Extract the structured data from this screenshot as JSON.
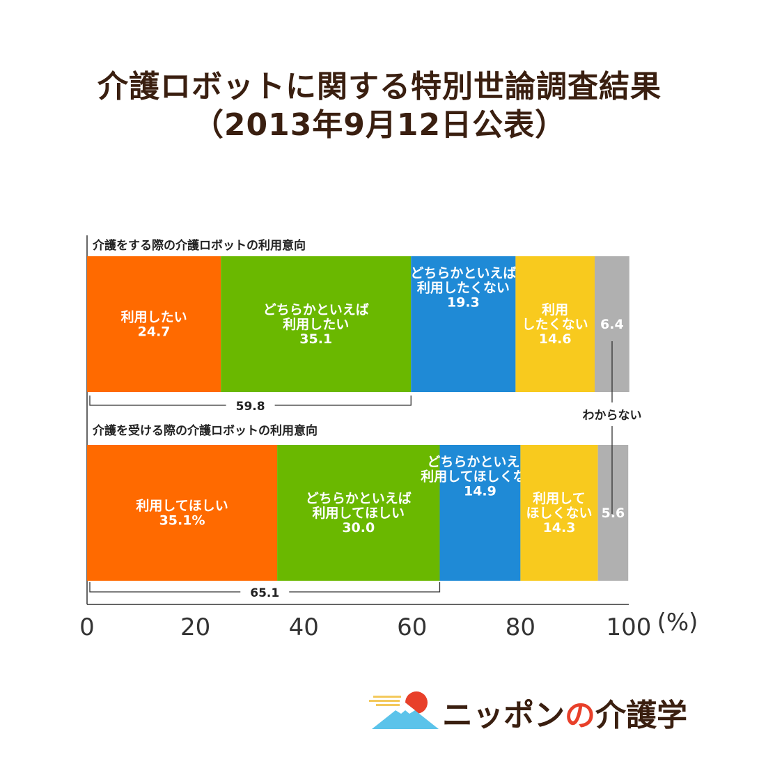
{
  "title": {
    "line1": "介護ロボットに関する特別世論調査結果",
    "line2": "（2013年9月12日公表）"
  },
  "chart_data": {
    "type": "bar",
    "orientation": "horizontal-stacked",
    "xlim": [
      0,
      100
    ],
    "x_ticks": [
      "0",
      "20",
      "40",
      "60",
      "80",
      "100"
    ],
    "unit": "(%)",
    "colors": [
      "#ff6a00",
      "#6ab800",
      "#1f8ad6",
      "#f8ca1e",
      "#b0b0b0"
    ],
    "groups": [
      {
        "title": "介護をする際の介護ロボットの利用意向",
        "segments": [
          {
            "label": "利用したい",
            "value_text": "24.7",
            "value": 24.7
          },
          {
            "label": "どちらかといえば\n利用したい",
            "value_text": "35.1",
            "value": 35.1
          },
          {
            "label": "どちらかといえば\n利用したくない",
            "value_text": "19.3",
            "value": 19.3
          },
          {
            "label": "利用\nしたくない",
            "value_text": "14.6",
            "value": 14.6
          },
          {
            "label": "",
            "value_text": "6.4",
            "value": 6.4
          }
        ],
        "bracket": {
          "from": 0,
          "to": 59.8,
          "value_text": "59.8"
        }
      },
      {
        "title": "介護を受ける際の介護ロボットの利用意向",
        "segments": [
          {
            "label": "利用してほしい",
            "value_text": "35.1%",
            "value": 35.1
          },
          {
            "label": "どちらかといえば\n利用してほしい",
            "value_text": "30.0",
            "value": 30.0
          },
          {
            "label": "どちらかといえば\n利用してほしくない",
            "value_text": "14.9",
            "value": 14.9
          },
          {
            "label": "利用して\nほしくない",
            "value_text": "14.3",
            "value": 14.3
          },
          {
            "label": "",
            "value_text": "5.6",
            "value": 5.6
          }
        ],
        "bracket": {
          "from": 0,
          "to": 65.1,
          "value_text": "65.1"
        }
      }
    ],
    "annotation": "わからない"
  },
  "logo": {
    "text_a": "ニッポン",
    "text_b": "の",
    "text_c": "介護学"
  }
}
